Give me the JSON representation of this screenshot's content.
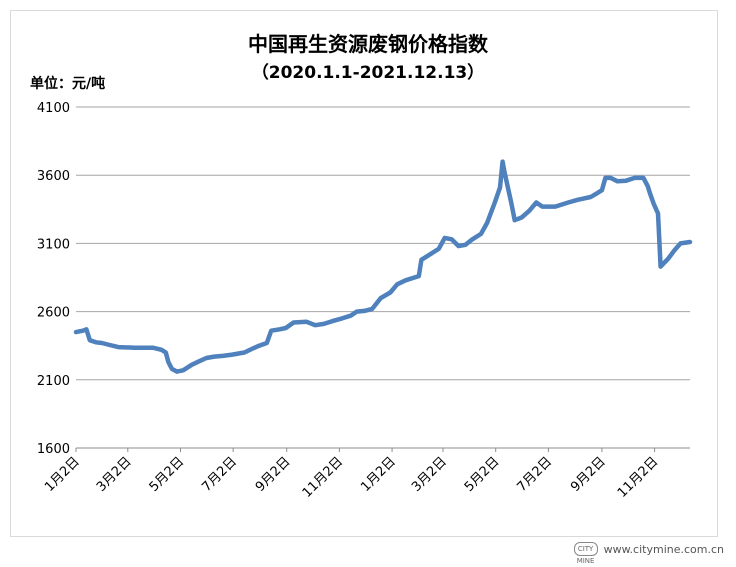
{
  "chart_data": {
    "type": "line",
    "title": "中国再生资源废钢价格指数",
    "subtitle": "（2020.1.1-2021.12.13）",
    "ylabel": "单位：元/吨",
    "ylim": [
      1600,
      4100
    ],
    "yticks": [
      1600,
      2100,
      2600,
      3100,
      3600,
      4100
    ],
    "xlim": [
      "2020-01-02",
      "2021-12-13"
    ],
    "xticks": [
      {
        "date": "2020-01-02",
        "label": "1月2日"
      },
      {
        "date": "2020-03-02",
        "label": "3月2日"
      },
      {
        "date": "2020-05-02",
        "label": "5月2日"
      },
      {
        "date": "2020-07-02",
        "label": "7月2日"
      },
      {
        "date": "2020-09-02",
        "label": "9月2日"
      },
      {
        "date": "2020-11-02",
        "label": "11月2日"
      },
      {
        "date": "2021-01-02",
        "label": "1月2日"
      },
      {
        "date": "2021-03-02",
        "label": "3月2日"
      },
      {
        "date": "2021-05-02",
        "label": "5月2日"
      },
      {
        "date": "2021-07-02",
        "label": "7月2日"
      },
      {
        "date": "2021-09-02",
        "label": "9月2日"
      },
      {
        "date": "2021-11-02",
        "label": "11月2日"
      }
    ],
    "grid": true,
    "series": [
      {
        "color": "#4f81bd",
        "points": [
          [
            "2020-01-02",
            2450
          ],
          [
            "2020-01-10",
            2460
          ],
          [
            "2020-01-14",
            2470
          ],
          [
            "2020-01-18",
            2390
          ],
          [
            "2020-01-25",
            2375
          ],
          [
            "2020-02-01",
            2370
          ],
          [
            "2020-02-10",
            2355
          ],
          [
            "2020-02-20",
            2340
          ],
          [
            "2020-03-10",
            2335
          ],
          [
            "2020-03-31",
            2335
          ],
          [
            "2020-04-10",
            2320
          ],
          [
            "2020-04-15",
            2300
          ],
          [
            "2020-04-18",
            2230
          ],
          [
            "2020-04-22",
            2180
          ],
          [
            "2020-04-28",
            2160
          ],
          [
            "2020-05-05",
            2170
          ],
          [
            "2020-05-15",
            2210
          ],
          [
            "2020-05-25",
            2240
          ],
          [
            "2020-06-01",
            2260
          ],
          [
            "2020-06-10",
            2270
          ],
          [
            "2020-06-20",
            2275
          ],
          [
            "2020-07-01",
            2285
          ],
          [
            "2020-07-15",
            2300
          ],
          [
            "2020-07-25",
            2330
          ],
          [
            "2020-08-01",
            2350
          ],
          [
            "2020-08-10",
            2370
          ],
          [
            "2020-08-15",
            2460
          ],
          [
            "2020-08-25",
            2470
          ],
          [
            "2020-09-01",
            2480
          ],
          [
            "2020-09-10",
            2520
          ],
          [
            "2020-09-25",
            2525
          ],
          [
            "2020-10-05",
            2500
          ],
          [
            "2020-10-15",
            2510
          ],
          [
            "2020-10-25",
            2530
          ],
          [
            "2020-11-05",
            2550
          ],
          [
            "2020-11-15",
            2570
          ],
          [
            "2020-11-22",
            2600
          ],
          [
            "2020-12-01",
            2605
          ],
          [
            "2020-12-10",
            2620
          ],
          [
            "2020-12-20",
            2700
          ],
          [
            "2020-12-31",
            2740
          ],
          [
            "2021-01-08",
            2800
          ],
          [
            "2021-01-18",
            2830
          ],
          [
            "2021-01-28",
            2850
          ],
          [
            "2021-02-02",
            2860
          ],
          [
            "2021-02-05",
            2980
          ],
          [
            "2021-02-15",
            3020
          ],
          [
            "2021-02-25",
            3060
          ],
          [
            "2021-03-04",
            3140
          ],
          [
            "2021-03-12",
            3130
          ],
          [
            "2021-03-20",
            3080
          ],
          [
            "2021-03-28",
            3090
          ],
          [
            "2021-04-05",
            3130
          ],
          [
            "2021-04-15",
            3170
          ],
          [
            "2021-04-22",
            3250
          ],
          [
            "2021-05-01",
            3400
          ],
          [
            "2021-05-07",
            3510
          ],
          [
            "2021-05-10",
            3700
          ],
          [
            "2021-05-12",
            3630
          ],
          [
            "2021-05-20",
            3400
          ],
          [
            "2021-05-24",
            3270
          ],
          [
            "2021-06-01",
            3290
          ],
          [
            "2021-06-10",
            3340
          ],
          [
            "2021-06-18",
            3400
          ],
          [
            "2021-06-25",
            3370
          ],
          [
            "2021-07-10",
            3370
          ],
          [
            "2021-07-25",
            3400
          ],
          [
            "2021-08-05",
            3420
          ],
          [
            "2021-08-20",
            3440
          ],
          [
            "2021-08-28",
            3470
          ],
          [
            "2021-09-02",
            3490
          ],
          [
            "2021-09-06",
            3580
          ],
          [
            "2021-09-12",
            3580
          ],
          [
            "2021-09-20",
            3555
          ],
          [
            "2021-09-30",
            3560
          ],
          [
            "2021-10-10",
            3580
          ],
          [
            "2021-10-20",
            3580
          ],
          [
            "2021-10-25",
            3520
          ],
          [
            "2021-10-28",
            3460
          ],
          [
            "2021-11-01",
            3390
          ],
          [
            "2021-11-06",
            3320
          ],
          [
            "2021-11-09",
            2930
          ],
          [
            "2021-11-18",
            2990
          ],
          [
            "2021-11-25",
            3050
          ],
          [
            "2021-12-02",
            3100
          ],
          [
            "2021-12-13",
            3110
          ]
        ]
      }
    ]
  },
  "footer": {
    "logo_text": "CITY MINE",
    "site": "www.citymine.com.cn"
  }
}
